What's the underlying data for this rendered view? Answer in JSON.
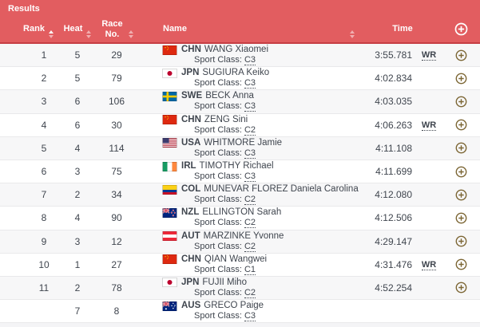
{
  "panel_title": "Results",
  "table": {
    "columns": {
      "rank": "Rank",
      "heat": "Heat",
      "race_no": "Race No.",
      "name": "Name",
      "time": "Time"
    },
    "sort_state": {
      "rank": "ascending",
      "heat": "none",
      "race_no": "none",
      "name": "none"
    },
    "sport_class_label": "Sport Class:",
    "rows": [
      {
        "rank": "1",
        "heat": "5",
        "race_no": "29",
        "country": "CHN",
        "name": "WANG Xiaomei",
        "sport_class": "C3",
        "time": "3:55.781",
        "record": "WR",
        "has_expand": true
      },
      {
        "rank": "2",
        "heat": "5",
        "race_no": "79",
        "country": "JPN",
        "name": "SUGIURA Keiko",
        "sport_class": "C3",
        "time": "4:02.834",
        "record": "",
        "has_expand": true
      },
      {
        "rank": "3",
        "heat": "6",
        "race_no": "106",
        "country": "SWE",
        "name": "BECK Anna",
        "sport_class": "C3",
        "time": "4:03.035",
        "record": "",
        "has_expand": true
      },
      {
        "rank": "4",
        "heat": "6",
        "race_no": "30",
        "country": "CHN",
        "name": "ZENG Sini",
        "sport_class": "C2",
        "time": "4:06.263",
        "record": "WR",
        "has_expand": true
      },
      {
        "rank": "5",
        "heat": "4",
        "race_no": "114",
        "country": "USA",
        "name": "WHITMORE Jamie",
        "sport_class": "C3",
        "time": "4:11.108",
        "record": "",
        "has_expand": true
      },
      {
        "rank": "6",
        "heat": "3",
        "race_no": "75",
        "country": "IRL",
        "name": "TIMOTHY Richael",
        "sport_class": "C3",
        "time": "4:11.699",
        "record": "",
        "has_expand": true
      },
      {
        "rank": "7",
        "heat": "2",
        "race_no": "34",
        "country": "COL",
        "name": "MUNEVAR FLOREZ Daniela Carolina",
        "sport_class": "C2",
        "time": "4:12.080",
        "record": "",
        "has_expand": true
      },
      {
        "rank": "8",
        "heat": "4",
        "race_no": "90",
        "country": "NZL",
        "name": "ELLINGTON Sarah",
        "sport_class": "C2",
        "time": "4:12.506",
        "record": "",
        "has_expand": true
      },
      {
        "rank": "9",
        "heat": "3",
        "race_no": "12",
        "country": "AUT",
        "name": "MARZINKE Yvonne",
        "sport_class": "C2",
        "time": "4:29.147",
        "record": "",
        "has_expand": true
      },
      {
        "rank": "10",
        "heat": "1",
        "race_no": "27",
        "country": "CHN",
        "name": "QIAN Wangwei",
        "sport_class": "C1",
        "time": "4:31.476",
        "record": "WR",
        "has_expand": true
      },
      {
        "rank": "11",
        "heat": "2",
        "race_no": "78",
        "country": "JPN",
        "name": "FUJII Miho",
        "sport_class": "C2",
        "time": "4:52.254",
        "record": "",
        "has_expand": true
      },
      {
        "rank": "",
        "heat": "7",
        "race_no": "8",
        "country": "AUS",
        "name": "GRECO Paige",
        "sport_class": "C3",
        "time": "",
        "record": "",
        "has_expand": false
      }
    ]
  },
  "colors": {
    "header_bg": "#e25d60",
    "header_border": "#c63e44",
    "row_bg": "#ffffff",
    "row_alt_bg": "#f7f7f8",
    "text": "#3f454e",
    "accent_icon": "#7c6634"
  }
}
